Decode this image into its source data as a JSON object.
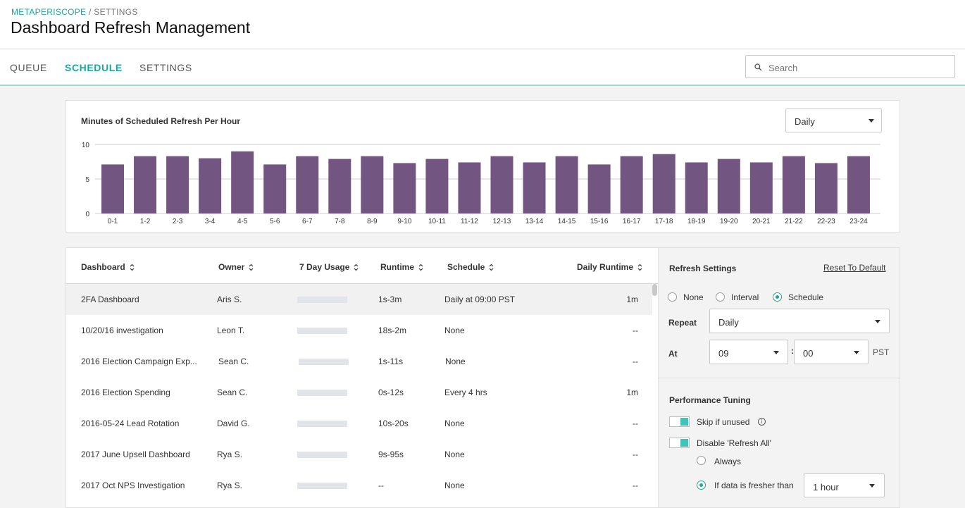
{
  "breadcrumb": {
    "root": "METAPERISCOPE",
    "sep": " / ",
    "current": "SETTINGS"
  },
  "title": "Dashboard Refresh Management",
  "tabs": [
    {
      "label": "QUEUE",
      "active": false
    },
    {
      "label": "SCHEDULE",
      "active": true
    },
    {
      "label": "SETTINGS",
      "active": false
    }
  ],
  "search": {
    "placeholder": "Search",
    "value": "",
    "icon": "search-icon"
  },
  "chart_card": {
    "title": "Minutes of Scheduled Refresh Per Hour",
    "period": "Daily"
  },
  "chart_data": {
    "type": "bar",
    "title": "Minutes of Scheduled Refresh Per Hour",
    "categories": [
      "0-1",
      "1-2",
      "2-3",
      "3-4",
      "4-5",
      "5-6",
      "6-7",
      "7-8",
      "8-9",
      "9-10",
      "10-11",
      "11-12",
      "12-13",
      "13-14",
      "14-15",
      "15-16",
      "16-17",
      "17-18",
      "18-19",
      "19-20",
      "20-21",
      "21-22",
      "22-23",
      "23-24"
    ],
    "values": [
      7.1,
      8.3,
      8.3,
      8.0,
      9.0,
      7.1,
      8.3,
      7.9,
      8.3,
      7.3,
      7.9,
      7.4,
      8.3,
      7.4,
      8.3,
      7.1,
      8.3,
      8.6,
      7.4,
      7.9,
      7.4,
      8.3,
      7.3,
      8.3
    ],
    "yticks": [
      0,
      5,
      10
    ],
    "ylim": [
      0,
      10
    ],
    "grid": true,
    "bar_color": "#735581",
    "grid_color": "#cccccc"
  },
  "table": {
    "columns": [
      "Dashboard",
      "Owner",
      "7 Day Usage",
      "Runtime",
      "Schedule",
      "Daily Runtime"
    ],
    "rows": [
      {
        "dashboard": "2FA Dashboard",
        "owner": "Aris S.",
        "runtime": "1s-3m",
        "schedule": "Daily at 09:00 PST",
        "daily_runtime": "1m",
        "selected": true
      },
      {
        "dashboard": "10/20/16 investigation",
        "owner": "Leon T.",
        "runtime": "18s-2m",
        "schedule": "None",
        "daily_runtime": "--"
      },
      {
        "dashboard": "2016 Election Campaign Exp...",
        "owner": "Sean C.",
        "runtime": "1s-11s",
        "schedule": "None",
        "daily_runtime": "--"
      },
      {
        "dashboard": "2016 Election Spending",
        "owner": "Sean C.",
        "runtime": "0s-12s",
        "schedule": "Every 4 hrs",
        "daily_runtime": "1m"
      },
      {
        "dashboard": "2016-05-24 Lead Rotation",
        "owner": "David G.",
        "runtime": "10s-20s",
        "schedule": "None",
        "daily_runtime": "--"
      },
      {
        "dashboard": "2017 June Upsell Dashboard",
        "owner": "Rya S.",
        "runtime": "9s-95s",
        "schedule": "None",
        "daily_runtime": "--"
      },
      {
        "dashboard": "2017 Oct NPS Investigation",
        "owner": "Rya S.",
        "runtime": "--",
        "schedule": "None",
        "daily_runtime": "--"
      }
    ]
  },
  "refresh_settings": {
    "title": "Refresh Settings",
    "reset_label": "Reset To Default",
    "modes": [
      {
        "label": "None",
        "selected": false
      },
      {
        "label": "Interval",
        "selected": false
      },
      {
        "label": "Schedule",
        "selected": true
      }
    ],
    "repeat_label": "Repeat",
    "repeat_value": "Daily",
    "at_label": "At",
    "hour_value": "09",
    "time_sep": ":",
    "minute_value": "00",
    "timezone": "PST"
  },
  "performance_tuning": {
    "title": "Performance Tuning",
    "skip_if_unused": {
      "label": "Skip if unused",
      "enabled": true,
      "info_icon": "info-icon"
    },
    "disable_refresh_all": {
      "label": "Disable 'Refresh All'",
      "enabled": true
    },
    "options": [
      {
        "label": "Always",
        "selected": false
      },
      {
        "label": "If data is fresher than",
        "selected": true
      }
    ],
    "freshness_value": "1 hour"
  },
  "colors": {
    "accent": "#1aa99a",
    "bar": "#735581",
    "toggle": "#3cc4bd"
  }
}
